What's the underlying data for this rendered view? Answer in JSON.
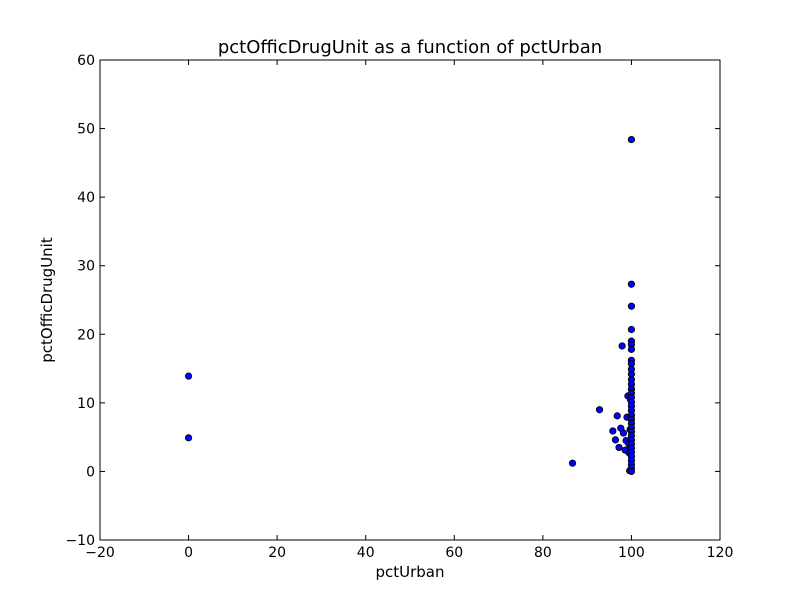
{
  "chart_data": {
    "type": "scatter",
    "title": "pctOfficDrugUnit as a function of pctUrban",
    "xlabel": "pctUrban",
    "ylabel": "pctOfficDrugUnit",
    "xlim": [
      -20,
      120
    ],
    "ylim": [
      -10,
      60
    ],
    "xticks": [
      -20,
      0,
      20,
      40,
      60,
      80,
      100,
      120
    ],
    "yticks": [
      -10,
      0,
      10,
      20,
      30,
      40,
      50,
      60
    ],
    "xtick_labels": [
      "−20",
      "0",
      "20",
      "40",
      "60",
      "80",
      "100",
      "120"
    ],
    "ytick_labels": [
      "−10",
      "0",
      "10",
      "20",
      "30",
      "40",
      "50",
      "60"
    ],
    "grid": false,
    "marker_color": "#0000ff",
    "marker_edge_color": "#000000",
    "points": [
      {
        "x": 0,
        "y": 13.9
      },
      {
        "x": 0,
        "y": 4.9
      },
      {
        "x": 86.7,
        "y": 1.2
      },
      {
        "x": 92.8,
        "y": 9.0
      },
      {
        "x": 95.8,
        "y": 5.9
      },
      {
        "x": 96.4,
        "y": 4.6
      },
      {
        "x": 96.8,
        "y": 8.1
      },
      {
        "x": 97.2,
        "y": 3.5
      },
      {
        "x": 97.6,
        "y": 6.3
      },
      {
        "x": 97.9,
        "y": 18.3
      },
      {
        "x": 98.2,
        "y": 5.6
      },
      {
        "x": 98.6,
        "y": 3.1
      },
      {
        "x": 98.8,
        "y": 4.5
      },
      {
        "x": 99.0,
        "y": 7.9
      },
      {
        "x": 99.2,
        "y": 11.0
      },
      {
        "x": 99.4,
        "y": 4.0
      },
      {
        "x": 99.5,
        "y": 2.7
      },
      {
        "x": 99.6,
        "y": 0.1
      },
      {
        "x": 99.7,
        "y": 6.1
      },
      {
        "x": 99.8,
        "y": 10.5
      },
      {
        "x": 99.9,
        "y": 3.6
      },
      {
        "x": 100,
        "y": 48.4
      },
      {
        "x": 100,
        "y": 27.3
      },
      {
        "x": 100,
        "y": 24.1
      },
      {
        "x": 100,
        "y": 20.7
      },
      {
        "x": 100,
        "y": 19.0
      },
      {
        "x": 100,
        "y": 18.5
      },
      {
        "x": 100,
        "y": 17.8
      },
      {
        "x": 100,
        "y": 16.2
      },
      {
        "x": 100,
        "y": 15.7
      },
      {
        "x": 100,
        "y": 14.9
      },
      {
        "x": 100,
        "y": 14.2
      },
      {
        "x": 100,
        "y": 13.4
      },
      {
        "x": 100,
        "y": 12.7
      },
      {
        "x": 100,
        "y": 12.0
      },
      {
        "x": 100,
        "y": 11.4
      },
      {
        "x": 100,
        "y": 10.8
      },
      {
        "x": 100,
        "y": 10.1
      },
      {
        "x": 100,
        "y": 9.5
      },
      {
        "x": 100,
        "y": 8.9
      },
      {
        "x": 100,
        "y": 8.2
      },
      {
        "x": 100,
        "y": 7.6
      },
      {
        "x": 100,
        "y": 7.0
      },
      {
        "x": 100,
        "y": 6.4
      },
      {
        "x": 100,
        "y": 5.8
      },
      {
        "x": 100,
        "y": 5.2
      },
      {
        "x": 100,
        "y": 4.6
      },
      {
        "x": 100,
        "y": 4.0
      },
      {
        "x": 100,
        "y": 3.4
      },
      {
        "x": 100,
        "y": 2.8
      },
      {
        "x": 100,
        "y": 2.2
      },
      {
        "x": 100,
        "y": 1.6
      },
      {
        "x": 100,
        "y": 1.0
      },
      {
        "x": 100,
        "y": 0.5
      },
      {
        "x": 100,
        "y": 0.0
      }
    ]
  }
}
